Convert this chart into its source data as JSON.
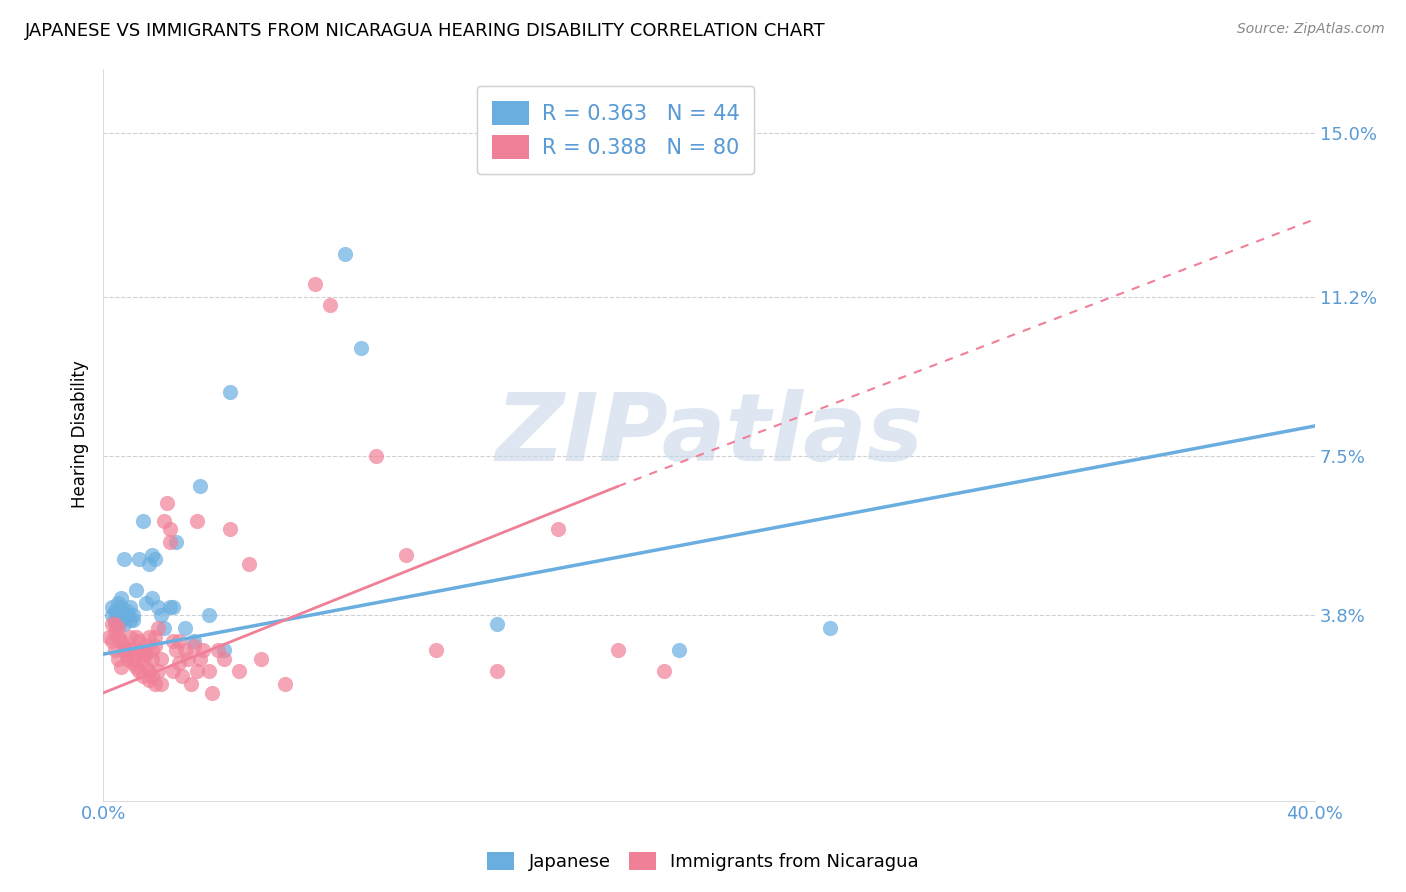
{
  "title": "JAPANESE VS IMMIGRANTS FROM NICARAGUA HEARING DISABILITY CORRELATION CHART",
  "source": "Source: ZipAtlas.com",
  "ylabel": "Hearing Disability",
  "ytick_labels": [
    "3.8%",
    "7.5%",
    "11.2%",
    "15.0%"
  ],
  "ytick_values": [
    0.038,
    0.075,
    0.112,
    0.15
  ],
  "xlim": [
    0.0,
    0.4
  ],
  "ylim": [
    -0.005,
    0.165
  ],
  "watermark": "ZIPatlas",
  "japanese_color": "#6aaee0",
  "nicaragua_color": "#f08098",
  "japanese_scatter": [
    [
      0.003,
      0.038
    ],
    [
      0.003,
      0.04
    ],
    [
      0.004,
      0.037
    ],
    [
      0.004,
      0.039
    ],
    [
      0.005,
      0.036
    ],
    [
      0.005,
      0.038
    ],
    [
      0.005,
      0.041
    ],
    [
      0.006,
      0.037
    ],
    [
      0.006,
      0.04
    ],
    [
      0.006,
      0.042
    ],
    [
      0.007,
      0.038
    ],
    [
      0.007,
      0.036
    ],
    [
      0.007,
      0.051
    ],
    [
      0.008,
      0.039
    ],
    [
      0.008,
      0.038
    ],
    [
      0.009,
      0.037
    ],
    [
      0.009,
      0.04
    ],
    [
      0.01,
      0.038
    ],
    [
      0.01,
      0.037
    ],
    [
      0.011,
      0.044
    ],
    [
      0.012,
      0.051
    ],
    [
      0.013,
      0.06
    ],
    [
      0.014,
      0.041
    ],
    [
      0.015,
      0.05
    ],
    [
      0.016,
      0.042
    ],
    [
      0.016,
      0.052
    ],
    [
      0.017,
      0.051
    ],
    [
      0.018,
      0.04
    ],
    [
      0.019,
      0.038
    ],
    [
      0.02,
      0.035
    ],
    [
      0.022,
      0.04
    ],
    [
      0.023,
      0.04
    ],
    [
      0.024,
      0.055
    ],
    [
      0.027,
      0.035
    ],
    [
      0.03,
      0.032
    ],
    [
      0.032,
      0.068
    ],
    [
      0.035,
      0.038
    ],
    [
      0.04,
      0.03
    ],
    [
      0.042,
      0.09
    ],
    [
      0.08,
      0.122
    ],
    [
      0.085,
      0.1
    ],
    [
      0.13,
      0.036
    ],
    [
      0.19,
      0.03
    ],
    [
      0.24,
      0.035
    ]
  ],
  "nicaragua_scatter": [
    [
      0.002,
      0.033
    ],
    [
      0.003,
      0.036
    ],
    [
      0.003,
      0.032
    ],
    [
      0.004,
      0.034
    ],
    [
      0.004,
      0.03
    ],
    [
      0.004,
      0.036
    ],
    [
      0.005,
      0.033
    ],
    [
      0.005,
      0.028
    ],
    [
      0.005,
      0.035
    ],
    [
      0.006,
      0.026
    ],
    [
      0.006,
      0.032
    ],
    [
      0.007,
      0.03
    ],
    [
      0.007,
      0.031
    ],
    [
      0.008,
      0.028
    ],
    [
      0.008,
      0.029
    ],
    [
      0.009,
      0.033
    ],
    [
      0.009,
      0.03
    ],
    [
      0.01,
      0.028
    ],
    [
      0.01,
      0.03
    ],
    [
      0.01,
      0.027
    ],
    [
      0.011,
      0.033
    ],
    [
      0.011,
      0.026
    ],
    [
      0.012,
      0.03
    ],
    [
      0.012,
      0.025
    ],
    [
      0.012,
      0.032
    ],
    [
      0.013,
      0.028
    ],
    [
      0.013,
      0.029
    ],
    [
      0.013,
      0.024
    ],
    [
      0.014,
      0.031
    ],
    [
      0.014,
      0.026
    ],
    [
      0.014,
      0.029
    ],
    [
      0.015,
      0.023
    ],
    [
      0.015,
      0.033
    ],
    [
      0.015,
      0.025
    ],
    [
      0.016,
      0.028
    ],
    [
      0.016,
      0.03
    ],
    [
      0.016,
      0.024
    ],
    [
      0.017,
      0.033
    ],
    [
      0.017,
      0.031
    ],
    [
      0.017,
      0.022
    ],
    [
      0.018,
      0.035
    ],
    [
      0.018,
      0.025
    ],
    [
      0.019,
      0.028
    ],
    [
      0.019,
      0.022
    ],
    [
      0.02,
      0.06
    ],
    [
      0.021,
      0.064
    ],
    [
      0.022,
      0.058
    ],
    [
      0.022,
      0.055
    ],
    [
      0.023,
      0.032
    ],
    [
      0.023,
      0.025
    ],
    [
      0.024,
      0.03
    ],
    [
      0.025,
      0.027
    ],
    [
      0.025,
      0.032
    ],
    [
      0.026,
      0.024
    ],
    [
      0.027,
      0.03
    ],
    [
      0.028,
      0.028
    ],
    [
      0.029,
      0.022
    ],
    [
      0.03,
      0.031
    ],
    [
      0.031,
      0.025
    ],
    [
      0.031,
      0.06
    ],
    [
      0.032,
      0.028
    ],
    [
      0.033,
      0.03
    ],
    [
      0.035,
      0.025
    ],
    [
      0.036,
      0.02
    ],
    [
      0.038,
      0.03
    ],
    [
      0.04,
      0.028
    ],
    [
      0.042,
      0.058
    ],
    [
      0.045,
      0.025
    ],
    [
      0.048,
      0.05
    ],
    [
      0.052,
      0.028
    ],
    [
      0.06,
      0.022
    ],
    [
      0.07,
      0.115
    ],
    [
      0.075,
      0.11
    ],
    [
      0.09,
      0.075
    ],
    [
      0.1,
      0.052
    ],
    [
      0.11,
      0.03
    ],
    [
      0.13,
      0.025
    ],
    [
      0.15,
      0.058
    ],
    [
      0.17,
      0.03
    ],
    [
      0.185,
      0.025
    ]
  ],
  "japanese_trendline": {
    "x": [
      0.0,
      0.4
    ],
    "y": [
      0.029,
      0.082
    ]
  },
  "nicaragua_trendline_solid": {
    "x": [
      0.0,
      0.17
    ],
    "y": [
      0.02,
      0.068
    ]
  },
  "nicaragua_trendline_dashed": {
    "x": [
      0.17,
      0.4
    ],
    "y": [
      0.068,
      0.13
    ]
  },
  "background_color": "#ffffff",
  "grid_color": "#d0d0d0",
  "title_fontsize": 13,
  "tick_label_color": "#5b9bd5"
}
